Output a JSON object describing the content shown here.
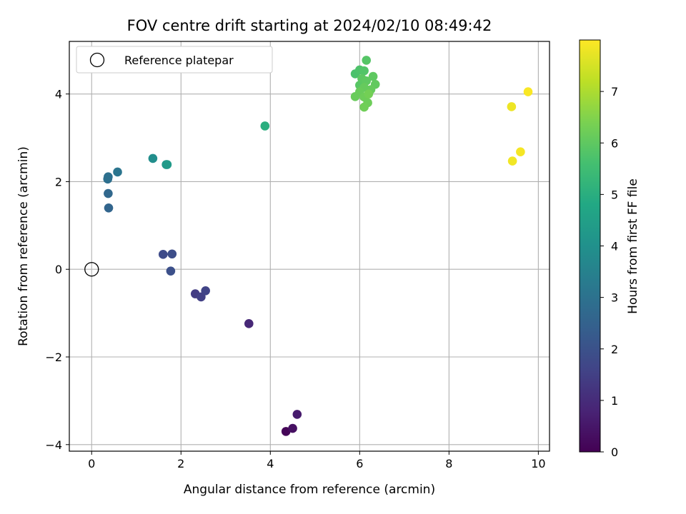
{
  "chart_data": {
    "type": "scatter",
    "title": "FOV centre drift starting at 2024/02/10 08:49:42",
    "xlabel": "Angular distance from reference (arcmin)",
    "ylabel": "Rotation from reference (arcmin)",
    "xlim": [
      -0.5,
      10.25
    ],
    "ylim": [
      -4.15,
      5.2
    ],
    "xticks": [
      0,
      2,
      4,
      6,
      8,
      10
    ],
    "xtick_labels": [
      "0",
      "2",
      "4",
      "6",
      "8",
      "10"
    ],
    "yticks": [
      -4,
      -2,
      0,
      2,
      4
    ],
    "ytick_labels": [
      "−4",
      "−2",
      "0",
      "2",
      "4"
    ],
    "grid": true,
    "legend": {
      "position": "top-left",
      "entries": [
        "Reference platepar"
      ]
    },
    "reference_point": {
      "x": 0,
      "y": 0
    },
    "colorbar": {
      "label": "Hours from first FF file",
      "colormap": "viridis",
      "range": [
        0,
        8.0
      ],
      "ticks": [
        0,
        1,
        2,
        3,
        4,
        5,
        6,
        7
      ],
      "tick_labels": [
        "0",
        "1",
        "2",
        "3",
        "4",
        "5",
        "6",
        "7"
      ]
    },
    "points": [
      {
        "x": 4.35,
        "y": -3.7,
        "c": 0.1
      },
      {
        "x": 4.5,
        "y": -3.63,
        "c": 0.35
      },
      {
        "x": 4.6,
        "y": -3.31,
        "c": 0.6
      },
      {
        "x": 3.52,
        "y": -1.24,
        "c": 0.9
      },
      {
        "x": 2.32,
        "y": -0.56,
        "c": 1.4
      },
      {
        "x": 2.45,
        "y": -0.63,
        "c": 1.5
      },
      {
        "x": 2.55,
        "y": -0.49,
        "c": 1.6
      },
      {
        "x": 1.6,
        "y": 0.34,
        "c": 1.8
      },
      {
        "x": 1.8,
        "y": 0.35,
        "c": 1.9
      },
      {
        "x": 1.77,
        "y": -0.04,
        "c": 1.95
      },
      {
        "x": 0.38,
        "y": 1.4,
        "c": 2.6
      },
      {
        "x": 0.37,
        "y": 1.73,
        "c": 2.7
      },
      {
        "x": 0.36,
        "y": 2.06,
        "c": 2.9
      },
      {
        "x": 0.37,
        "y": 2.11,
        "c": 2.95
      },
      {
        "x": 0.58,
        "y": 2.22,
        "c": 3.1
      },
      {
        "x": 1.37,
        "y": 2.53,
        "c": 3.9
      },
      {
        "x": 1.67,
        "y": 2.39,
        "c": 4.2
      },
      {
        "x": 1.69,
        "y": 2.39,
        "c": 4.3
      },
      {
        "x": 3.88,
        "y": 3.27,
        "c": 5.0
      },
      {
        "x": 5.9,
        "y": 4.46,
        "c": 5.7
      },
      {
        "x": 6.0,
        "y": 4.55,
        "c": 5.75
      },
      {
        "x": 6.1,
        "y": 4.53,
        "c": 5.8
      },
      {
        "x": 6.15,
        "y": 4.77,
        "c": 5.85
      },
      {
        "x": 6.0,
        "y": 4.2,
        "c": 5.9
      },
      {
        "x": 6.05,
        "y": 4.35,
        "c": 5.95
      },
      {
        "x": 6.15,
        "y": 4.3,
        "c": 6.0
      },
      {
        "x": 6.3,
        "y": 4.4,
        "c": 6.0
      },
      {
        "x": 6.35,
        "y": 4.22,
        "c": 6.05
      },
      {
        "x": 6.25,
        "y": 4.1,
        "c": 6.1
      },
      {
        "x": 6.1,
        "y": 4.15,
        "c": 6.1
      },
      {
        "x": 6.0,
        "y": 4.05,
        "c": 6.15
      },
      {
        "x": 5.9,
        "y": 3.94,
        "c": 6.15
      },
      {
        "x": 6.1,
        "y": 3.93,
        "c": 6.2
      },
      {
        "x": 6.18,
        "y": 3.8,
        "c": 6.2
      },
      {
        "x": 6.1,
        "y": 3.7,
        "c": 6.25
      },
      {
        "x": 6.2,
        "y": 4.0,
        "c": 6.3
      },
      {
        "x": 9.4,
        "y": 3.71,
        "c": 7.8
      },
      {
        "x": 9.42,
        "y": 2.47,
        "c": 7.85
      },
      {
        "x": 9.6,
        "y": 2.68,
        "c": 7.9
      },
      {
        "x": 9.77,
        "y": 4.05,
        "c": 7.95
      }
    ]
  }
}
